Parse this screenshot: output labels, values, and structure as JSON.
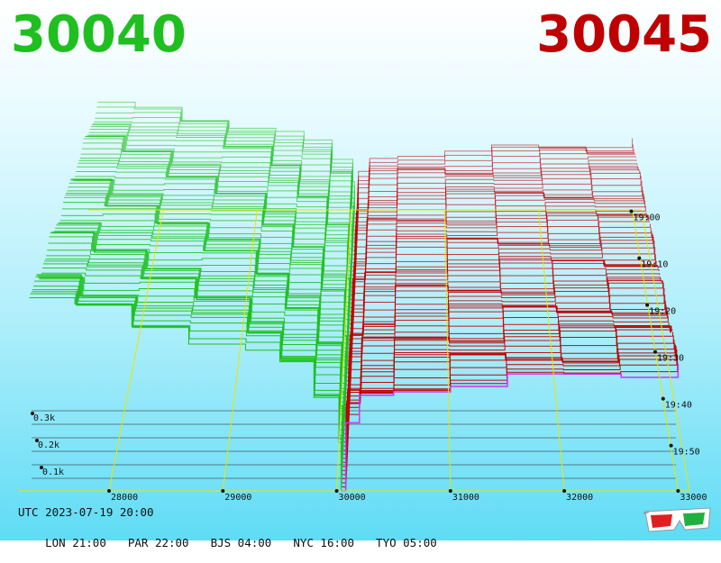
{
  "header": {
    "bid_price": "30040",
    "ask_price": "30045"
  },
  "footer": {
    "utc_line": "UTC 2023-07-19 20:00",
    "zones": [
      {
        "label": "LON 21:00"
      },
      {
        "label": "PAR 22:00"
      },
      {
        "label": "BJS 04:00"
      },
      {
        "label": "NYC 16:00"
      },
      {
        "label": "TYO 05:00"
      }
    ]
  },
  "icons": {
    "glasses": "3d-glasses-icon"
  },
  "colors": {
    "bid": "#1fbf1f",
    "ask": "#bf0000",
    "grid": "#e6e600",
    "latest": "#cc33ff"
  },
  "chart_data": {
    "type": "area",
    "x_ticks": [
      "28000",
      "29000",
      "30000",
      "31000",
      "32000",
      "33000"
    ],
    "time_ticks": [
      "19:00",
      "19:10",
      "19:20",
      "19:30",
      "19:40",
      "19:50"
    ],
    "volume_ticks": [
      "0.3k",
      "0.2k",
      "0.1k"
    ],
    "x_range": [
      27200,
      33100
    ],
    "series": [
      {
        "name": "bid",
        "side": "bid",
        "steps": [
          [
            27300,
            0.34
          ],
          [
            27700,
            0.32
          ],
          [
            28200,
            0.3
          ],
          [
            28700,
            0.28
          ],
          [
            29200,
            0.25
          ],
          [
            29500,
            0.22
          ],
          [
            29800,
            0.17
          ],
          [
            30020,
            0.09
          ],
          [
            30040,
            0.0
          ]
        ]
      },
      {
        "name": "ask",
        "side": "ask",
        "steps": [
          [
            30045,
            0.0
          ],
          [
            30080,
            0.12
          ],
          [
            30200,
            0.16
          ],
          [
            30500,
            0.18
          ],
          [
            31000,
            0.19
          ],
          [
            31500,
            0.2
          ],
          [
            32000,
            0.21
          ],
          [
            32500,
            0.22
          ],
          [
            33000,
            0.23
          ]
        ]
      }
    ]
  }
}
